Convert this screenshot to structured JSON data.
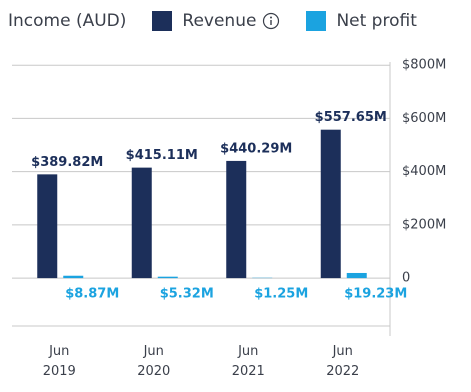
{
  "chart_data": {
    "type": "bar",
    "title": "Income (AUD)",
    "categories": [
      "Jun 2019",
      "Jun 2020",
      "Jun 2021",
      "Jun 2022"
    ],
    "series": [
      {
        "name": "Revenue",
        "color": "#1c2f5a",
        "values": [
          389.82,
          415.11,
          440.29,
          557.65
        ],
        "value_labels": [
          "$389.82M",
          "$415.11M",
          "$440.29M",
          "$557.65M"
        ]
      },
      {
        "name": "Net profit",
        "color": "#1ba3e0",
        "values": [
          8.87,
          5.32,
          1.25,
          19.23
        ],
        "value_labels": [
          "$8.87M",
          "$5.32M",
          "$1.25M",
          "$19.23M"
        ]
      }
    ],
    "ylim": [
      -180,
      812
    ],
    "yticks": [
      0,
      {
        "value": 200,
        "label": "$200M"
      },
      {
        "value": 400,
        "label": "$400M"
      },
      {
        "value": 600,
        "label": "$600M"
      },
      {
        "value": 800,
        "label": "$800M"
      }
    ],
    "grid": true
  }
}
